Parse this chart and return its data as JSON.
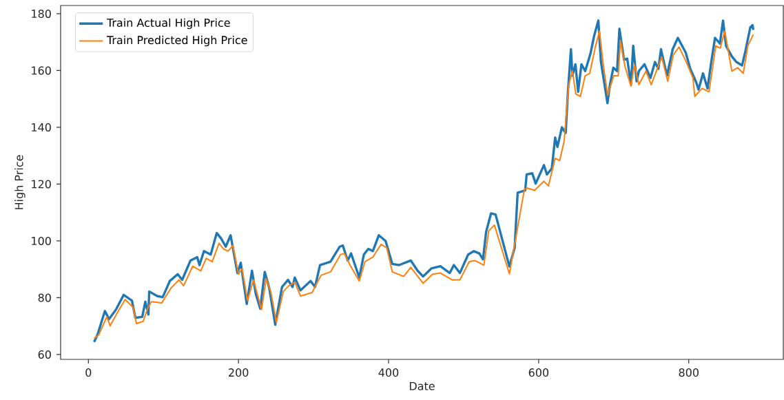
{
  "chart_data": {
    "type": "line",
    "xlabel": "Date",
    "ylabel": "High Price",
    "xlim": [
      -37,
      926
    ],
    "ylim": [
      58.3,
      182.9
    ],
    "xticks": [
      0,
      200,
      400,
      600,
      800
    ],
    "yticks": [
      60,
      80,
      100,
      120,
      140,
      160,
      180
    ],
    "grid": false,
    "legend": "top left",
    "marker": "none",
    "line_style": "solid",
    "series": [
      {
        "name": "Train Actual High Price",
        "color": "#1f77b4",
        "x": [
          7.6,
          12,
          22,
          27.5,
          36.7,
          47,
          58,
          62.6,
          71.8,
          75.8,
          80,
          81,
          91.7,
          99,
          108.5,
          119,
          125,
          136,
          145,
          148,
          154,
          163,
          171,
          177,
          183,
          189.5,
          198.6,
          203,
          211,
          218,
          223,
          229,
          235,
          241,
          249,
          258,
          266,
          272,
          275,
          282.6,
          296,
          302,
          308.6,
          322.6,
          335,
          339,
          345.5,
          350,
          361,
          367,
          373,
          379,
          387,
          396,
          405,
          414,
          429.6,
          438.7,
          446,
          457,
          469,
          481.5,
          487,
          495,
          506,
          513.6,
          521,
          525.8,
          530,
          536.5,
          542.6,
          561,
          568,
          572,
          582,
          584,
          591.5,
          596,
          607,
          611,
          617.5,
          622,
          625,
          631,
          636,
          639,
          643,
          645,
          649,
          652.6,
          657,
          662,
          669,
          674,
          679.5,
          683,
          691.7,
          695,
          699.5,
          704.5,
          707.6,
          713.7,
          718,
          723,
          726,
          730.5,
          733.5,
          741,
          749,
          755,
          759.5,
          763,
          771,
          778.6,
          785.5,
          796,
          802,
          810,
          813,
          819,
          825,
          830,
          835,
          841.5,
          845.7,
          849.7,
          857.4,
          863.5,
          871,
          875.6,
          882,
          885,
          886
        ],
        "values": [
          64.4,
          66.9,
          75.3,
          72.5,
          75.8,
          81,
          79,
          72.9,
          73.3,
          78.6,
          74.1,
          82.2,
          80.6,
          80.2,
          85.9,
          88.3,
          86.3,
          93.1,
          94.3,
          91.5,
          96.4,
          95.2,
          102.8,
          100.8,
          98,
          102,
          88.7,
          92.3,
          77.8,
          89.5,
          81.4,
          76.2,
          89.1,
          83.4,
          70.5,
          83.8,
          86.3,
          83.8,
          87.1,
          82.6,
          85.9,
          83.8,
          91.5,
          92.7,
          98,
          98.4,
          93.1,
          95.6,
          87.1,
          95.2,
          97.2,
          96.4,
          102,
          100,
          91.9,
          91.5,
          93.1,
          89.5,
          87.5,
          90.3,
          91.1,
          88.7,
          91.5,
          88.7,
          95.2,
          96.4,
          95.6,
          93.5,
          103.2,
          109.7,
          109.3,
          91,
          97.6,
          117,
          117.8,
          123.4,
          123.8,
          120.2,
          126.7,
          123.4,
          125.5,
          136.4,
          133.1,
          140,
          138,
          152.5,
          167.5,
          158.2,
          162.2,
          152.5,
          162.2,
          159.8,
          165.9,
          172.3,
          177.6,
          163,
          148.5,
          155,
          161,
          159.8,
          174.7,
          163.8,
          164.2,
          155,
          168.7,
          156.2,
          159.8,
          162.2,
          157.4,
          163,
          160.6,
          167.5,
          158.2,
          167.5,
          171.5,
          166.3,
          160.6,
          155.8,
          153.3,
          159,
          153.7,
          163,
          171.5,
          169.5,
          177.6,
          168.7,
          165,
          163,
          161.8,
          167,
          175.2,
          176,
          174.3
        ]
      },
      {
        "name": "Train Predicted High Price",
        "color": "#ff7f0e",
        "x": [
          7.6,
          13.7,
          24.5,
          29,
          38,
          49,
          59.6,
          64,
          73,
          79.5,
          84,
          97.8,
          110,
          120.7,
          126.8,
          139,
          149.7,
          157,
          165,
          174,
          180,
          186,
          192.5,
          200,
          204.7,
          212,
          220,
          230.7,
          236.8,
          243,
          250.5,
          259.7,
          267,
          275,
          282.6,
          298,
          310,
          322.6,
          336,
          341,
          348.6,
          361,
          368.5,
          379,
          390,
          397.5,
          405,
          420,
          429.6,
          446,
          458.6,
          469,
          484.6,
          495,
          507.5,
          515,
          527,
          533.5,
          541,
          561,
          581,
          585,
          594.6,
          607,
          613,
          622,
          628,
          634,
          640,
          645,
          649.5,
          655.6,
          662,
          668,
          675.5,
          681,
          686,
          692,
          700,
          706,
          709,
          715,
          723,
          727.5,
          733.5,
          743,
          750,
          758,
          764,
          772,
          779.4,
          787,
          796,
          805.6,
          808,
          817.6,
          827,
          836,
          842,
          848,
          857.4,
          865,
          872.6,
          878.7,
          886
        ],
        "values": [
          65.7,
          66.9,
          73.3,
          70.1,
          74.5,
          79.4,
          76.6,
          70.9,
          71.7,
          76.6,
          78.6,
          78.2,
          83.4,
          86.3,
          84.2,
          91.1,
          89.5,
          93.9,
          92.7,
          99.2,
          97.2,
          96.4,
          98.4,
          88.3,
          90.3,
          79,
          86.3,
          75.8,
          86.7,
          82.2,
          71.3,
          82.2,
          84.2,
          85.5,
          80.6,
          81.8,
          87.9,
          89.1,
          95.2,
          95.6,
          91.5,
          85.9,
          92.7,
          94.3,
          98.8,
          97.6,
          89.1,
          87.5,
          90.7,
          85.1,
          88.3,
          88.7,
          86.3,
          86.3,
          92.7,
          93.1,
          91.5,
          103.6,
          105.6,
          88.4,
          118.2,
          118.6,
          117.8,
          121,
          119.4,
          129.1,
          128.3,
          135.2,
          155,
          159.8,
          151.7,
          150.9,
          158.2,
          159,
          168.3,
          173.9,
          162.2,
          151.3,
          158.2,
          158.2,
          170.7,
          161.4,
          154.5,
          162.2,
          155,
          159.8,
          155,
          160.6,
          164.7,
          156.2,
          165.5,
          168.3,
          163.4,
          157.4,
          150.9,
          153.7,
          152.5,
          168.7,
          167.9,
          173.9,
          159.8,
          161,
          159,
          168.7,
          172.7
        ]
      }
    ]
  }
}
